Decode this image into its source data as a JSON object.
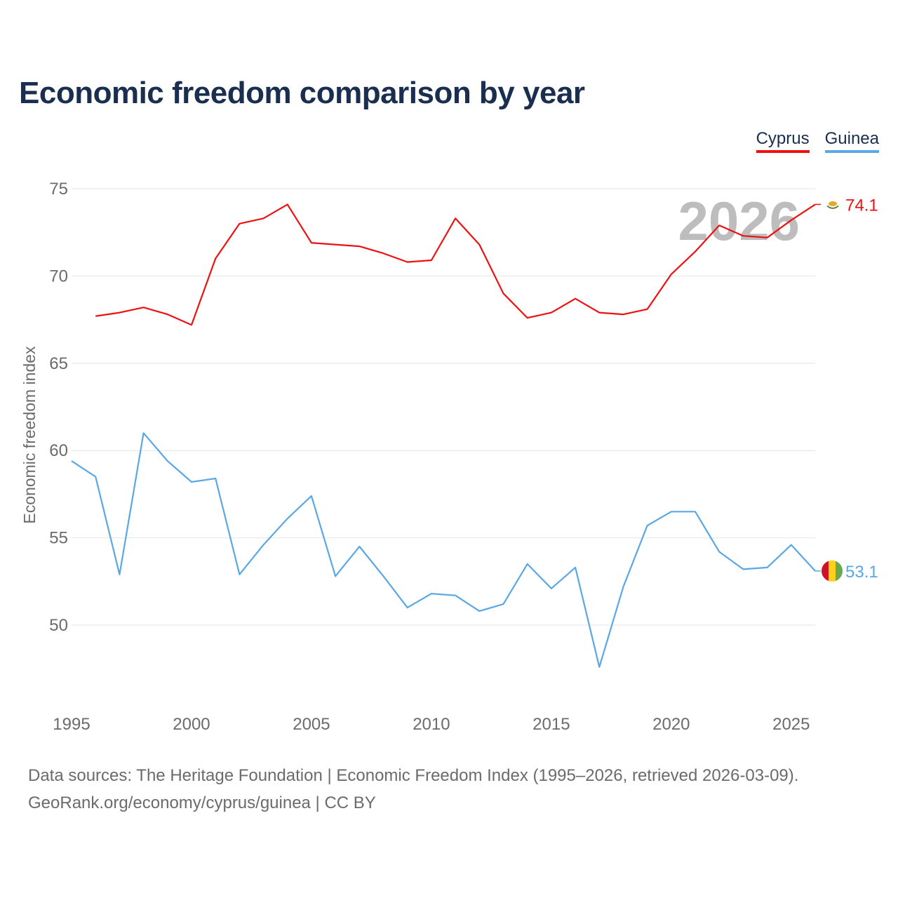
{
  "chart_data": {
    "type": "line",
    "title": "Economic freedom comparison by year",
    "xlabel": "",
    "ylabel": "Economic freedom index",
    "xlim": [
      1995,
      2026
    ],
    "ylim": [
      45,
      76
    ],
    "yticks": [
      50,
      55,
      60,
      65,
      70,
      75
    ],
    "xticks": [
      1995,
      2000,
      2005,
      2010,
      2015,
      2020,
      2025
    ],
    "year_watermark": "2026",
    "legend_position": "top-right",
    "series": [
      {
        "name": "Cyprus",
        "color": "#ee1111",
        "end_label": "74.1",
        "points": [
          [
            1996,
            67.7
          ],
          [
            1997,
            67.9
          ],
          [
            1998,
            68.2
          ],
          [
            1999,
            67.8
          ],
          [
            2000,
            67.2
          ],
          [
            2001,
            71.0
          ],
          [
            2002,
            73.0
          ],
          [
            2003,
            73.3
          ],
          [
            2004,
            74.1
          ],
          [
            2005,
            71.9
          ],
          [
            2006,
            71.8
          ],
          [
            2007,
            71.7
          ],
          [
            2008,
            71.3
          ],
          [
            2009,
            70.8
          ],
          [
            2010,
            70.9
          ],
          [
            2011,
            73.3
          ],
          [
            2012,
            71.8
          ],
          [
            2013,
            69.0
          ],
          [
            2014,
            67.6
          ],
          [
            2015,
            67.9
          ],
          [
            2016,
            68.7
          ],
          [
            2017,
            67.9
          ],
          [
            2018,
            67.8
          ],
          [
            2019,
            68.1
          ],
          [
            2020,
            70.1
          ],
          [
            2021,
            71.4
          ],
          [
            2022,
            72.9
          ],
          [
            2023,
            72.3
          ],
          [
            2024,
            72.2
          ],
          [
            2025,
            73.2
          ],
          [
            2026,
            74.1
          ]
        ]
      },
      {
        "name": "Guinea",
        "color": "#5aa7e6",
        "end_label": "53.1",
        "points": [
          [
            1995,
            59.4
          ],
          [
            1996,
            58.5
          ],
          [
            1997,
            52.9
          ],
          [
            1998,
            61.0
          ],
          [
            1999,
            59.4
          ],
          [
            2000,
            58.2
          ],
          [
            2001,
            58.4
          ],
          [
            2002,
            52.9
          ],
          [
            2003,
            54.6
          ],
          [
            2004,
            56.1
          ],
          [
            2005,
            57.4
          ],
          [
            2006,
            52.8
          ],
          [
            2007,
            54.5
          ],
          [
            2008,
            52.8
          ],
          [
            2009,
            51.0
          ],
          [
            2010,
            51.8
          ],
          [
            2011,
            51.7
          ],
          [
            2012,
            50.8
          ],
          [
            2013,
            51.2
          ],
          [
            2014,
            53.5
          ],
          [
            2015,
            52.1
          ],
          [
            2016,
            53.3
          ],
          [
            2017,
            47.6
          ],
          [
            2018,
            52.2
          ],
          [
            2019,
            55.7
          ],
          [
            2020,
            56.5
          ],
          [
            2021,
            56.5
          ],
          [
            2022,
            54.2
          ],
          [
            2023,
            53.2
          ],
          [
            2024,
            53.3
          ],
          [
            2025,
            54.6
          ],
          [
            2026,
            53.1
          ]
        ]
      }
    ]
  },
  "legend": {
    "items": [
      "Cyprus",
      "Guinea"
    ]
  },
  "footer": {
    "sources": "Data sources: The Heritage Foundation | Economic Freedom Index (1995–2026, retrieved 2026-03-09).",
    "credit": "GeoRank.org/economy/cyprus/guinea | CC BY"
  }
}
